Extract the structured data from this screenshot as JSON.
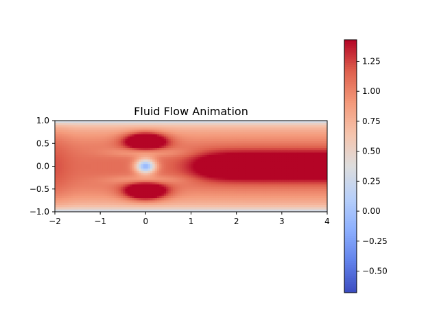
{
  "chart_data": {
    "type": "heatmap",
    "title": "Fluid Flow Animation",
    "xlabel": "",
    "ylabel": "",
    "xlim": [
      -2,
      4
    ],
    "ylim": [
      -1,
      1
    ],
    "x_ticks": [
      -2,
      -1,
      0,
      1,
      2,
      3,
      4
    ],
    "y_ticks": [
      -1.0,
      -0.5,
      0.0,
      0.5,
      1.0
    ],
    "x_tick_labels": [
      "−2",
      "−1",
      "0",
      "1",
      "2",
      "3",
      "4"
    ],
    "y_tick_labels": [
      "−1.0",
      "−0.5",
      "0.0",
      "0.5",
      "1.0"
    ],
    "colormap": "coolwarm",
    "colorbar": {
      "range": [
        -0.68,
        1.43
      ],
      "ticks": [
        -0.5,
        -0.25,
        0.0,
        0.25,
        0.5,
        0.75,
        1.0,
        1.25
      ],
      "tick_labels": [
        "−0.50",
        "−0.25",
        "0.00",
        "0.25",
        "0.50",
        "0.75",
        "1.00",
        "1.25"
      ]
    },
    "field_features": [
      {
        "kind": "inlet-profile",
        "x_range": [
          -2,
          -1.8
        ],
        "peak_value": 1.2
      },
      {
        "kind": "high-speed-lobe",
        "x": 0.0,
        "y": 0.55,
        "value": 1.43
      },
      {
        "kind": "high-speed-lobe",
        "x": 0.0,
        "y": -0.55,
        "value": 1.43
      },
      {
        "kind": "low-speed-core",
        "x": 0.0,
        "y": 0.0,
        "value": -0.1
      },
      {
        "kind": "wake-jet",
        "x_range": [
          1.2,
          4.0
        ],
        "y": 0.0,
        "value": 1.43
      },
      {
        "kind": "wall-boundary",
        "y": 1.0,
        "value": 0.3
      },
      {
        "kind": "wall-boundary",
        "y": -1.0,
        "value": 0.3
      }
    ]
  }
}
